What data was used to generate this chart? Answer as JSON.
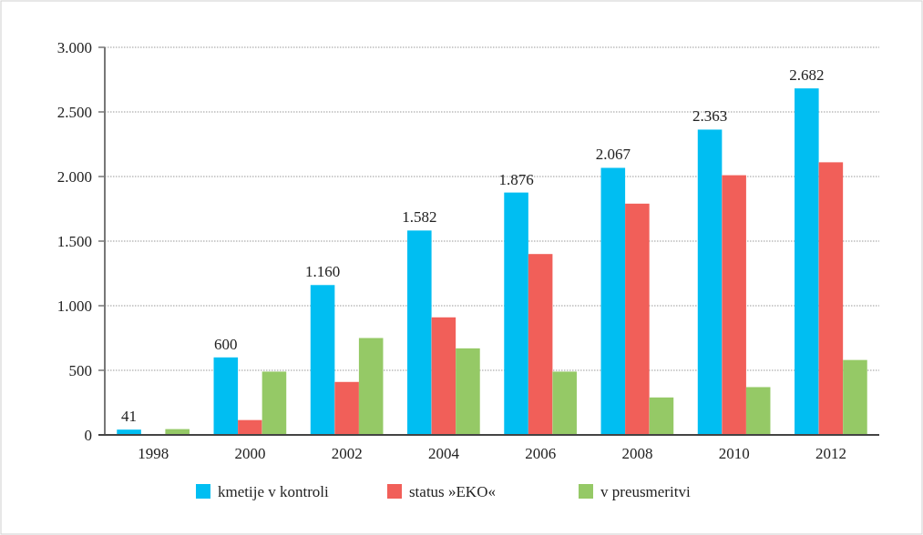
{
  "chart_data": {
    "type": "bar",
    "categories": [
      "1998",
      "2000",
      "2002",
      "2004",
      "2006",
      "2008",
      "2010",
      "2012"
    ],
    "series": [
      {
        "name": "kmetije v kontroli",
        "color": "#00bef2",
        "values": [
          41,
          600,
          1160,
          1582,
          1876,
          2067,
          2363,
          2682
        ],
        "value_labels": [
          "41",
          "600",
          "1.160",
          "1.582",
          "1.876",
          "2.067",
          "2.363",
          "2.682"
        ]
      },
      {
        "name": "status »EKO«",
        "color": "#f15f59",
        "values": [
          null,
          115,
          410,
          910,
          1400,
          1790,
          2010,
          2110
        ]
      },
      {
        "name": "v preusmeritvi",
        "color": "#95c966",
        "values": [
          45,
          490,
          750,
          670,
          490,
          290,
          370,
          580
        ]
      }
    ],
    "ylim": [
      0,
      3000
    ],
    "yticks": [
      0,
      500,
      {
        "value": 1000,
        "label": "1.000"
      },
      {
        "value": 1500,
        "label": "1.500"
      },
      {
        "value": 2000,
        "label": "2.000"
      },
      {
        "value": 2500,
        "label": "2.500"
      },
      {
        "value": 3000,
        "label": "3.000"
      }
    ],
    "grid": "y",
    "legend": "bottom"
  }
}
